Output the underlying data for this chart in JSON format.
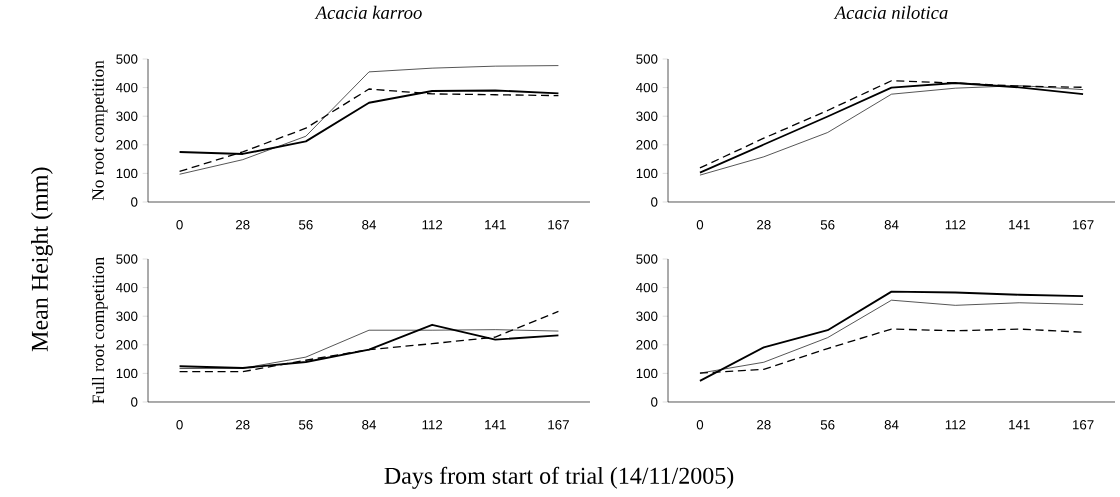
{
  "chart_data": [
    {
      "type": "line",
      "title": "Acacia karroo",
      "ylabel": "No root competition",
      "annotations": [
        "Mean Height (mm)"
      ],
      "categories": [
        "0",
        "28",
        "56",
        "84",
        "112",
        "141",
        "167"
      ],
      "ylim": [
        0,
        500
      ],
      "yticks": [
        0,
        100,
        200,
        300,
        400,
        500
      ],
      "series": [
        {
          "color": "#000000",
          "line_style": "solid",
          "values": [
            97,
            148,
            230,
            455,
            468,
            475,
            477
          ]
        },
        {
          "color": "#000000",
          "line_style": "solid",
          "values": [
            175,
            168,
            212,
            347,
            388,
            390,
            380
          ]
        },
        {
          "color": "#000000",
          "line_style": "dashed",
          "values": [
            107,
            175,
            258,
            395,
            378,
            375,
            372
          ]
        }
      ]
    },
    {
      "type": "line",
      "title": "Acacia nilotica",
      "categories": [
        "0",
        "28",
        "56",
        "84",
        "112",
        "141",
        "167"
      ],
      "ylim": [
        0,
        500
      ],
      "yticks": [
        0,
        100,
        200,
        300,
        400,
        500
      ],
      "series": [
        {
          "color": "#000000",
          "line_style": "solid",
          "values": [
            94,
            158,
            243,
            377,
            398,
            407,
            393
          ]
        },
        {
          "color": "#000000",
          "line_style": "solid",
          "values": [
            103,
            201,
            299,
            400,
            416,
            401,
            377
          ]
        },
        {
          "color": "#000000",
          "line_style": "dashed",
          "values": [
            119,
            223,
            320,
            424,
            416,
            405,
            401
          ]
        }
      ]
    },
    {
      "type": "line",
      "ylabel": "Full root competition",
      "annotations": [
        "Days from start of trial (14/11/2005)"
      ],
      "categories": [
        "0",
        "28",
        "56",
        "84",
        "112",
        "141",
        "167"
      ],
      "ylim": [
        0,
        500
      ],
      "yticks": [
        0,
        100,
        200,
        300,
        400,
        500
      ],
      "series": [
        {
          "color": "#000000",
          "line_style": "solid",
          "values": [
            117,
            118,
            157,
            251,
            251,
            253,
            248
          ]
        },
        {
          "color": "#000000",
          "line_style": "solid",
          "values": [
            125,
            119,
            140,
            183,
            270,
            218,
            233
          ]
        },
        {
          "color": "#000000",
          "line_style": "dashed",
          "values": [
            106,
            106,
            146,
            183,
            204,
            227,
            317
          ]
        }
      ]
    },
    {
      "type": "line",
      "categories": [
        "0",
        "28",
        "56",
        "84",
        "112",
        "141",
        "167"
      ],
      "ylim": [
        0,
        500
      ],
      "yticks": [
        0,
        100,
        200,
        300,
        400,
        500
      ],
      "series": [
        {
          "color": "#000000",
          "line_style": "solid",
          "values": [
            101,
            139,
            225,
            356,
            338,
            347,
            341
          ]
        },
        {
          "color": "#000000",
          "line_style": "solid",
          "values": [
            74,
            191,
            251,
            386,
            383,
            375,
            370
          ]
        },
        {
          "color": "#000000",
          "line_style": "dashed",
          "values": [
            101,
            114,
            187,
            255,
            249,
            255,
            244
          ]
        }
      ]
    }
  ]
}
